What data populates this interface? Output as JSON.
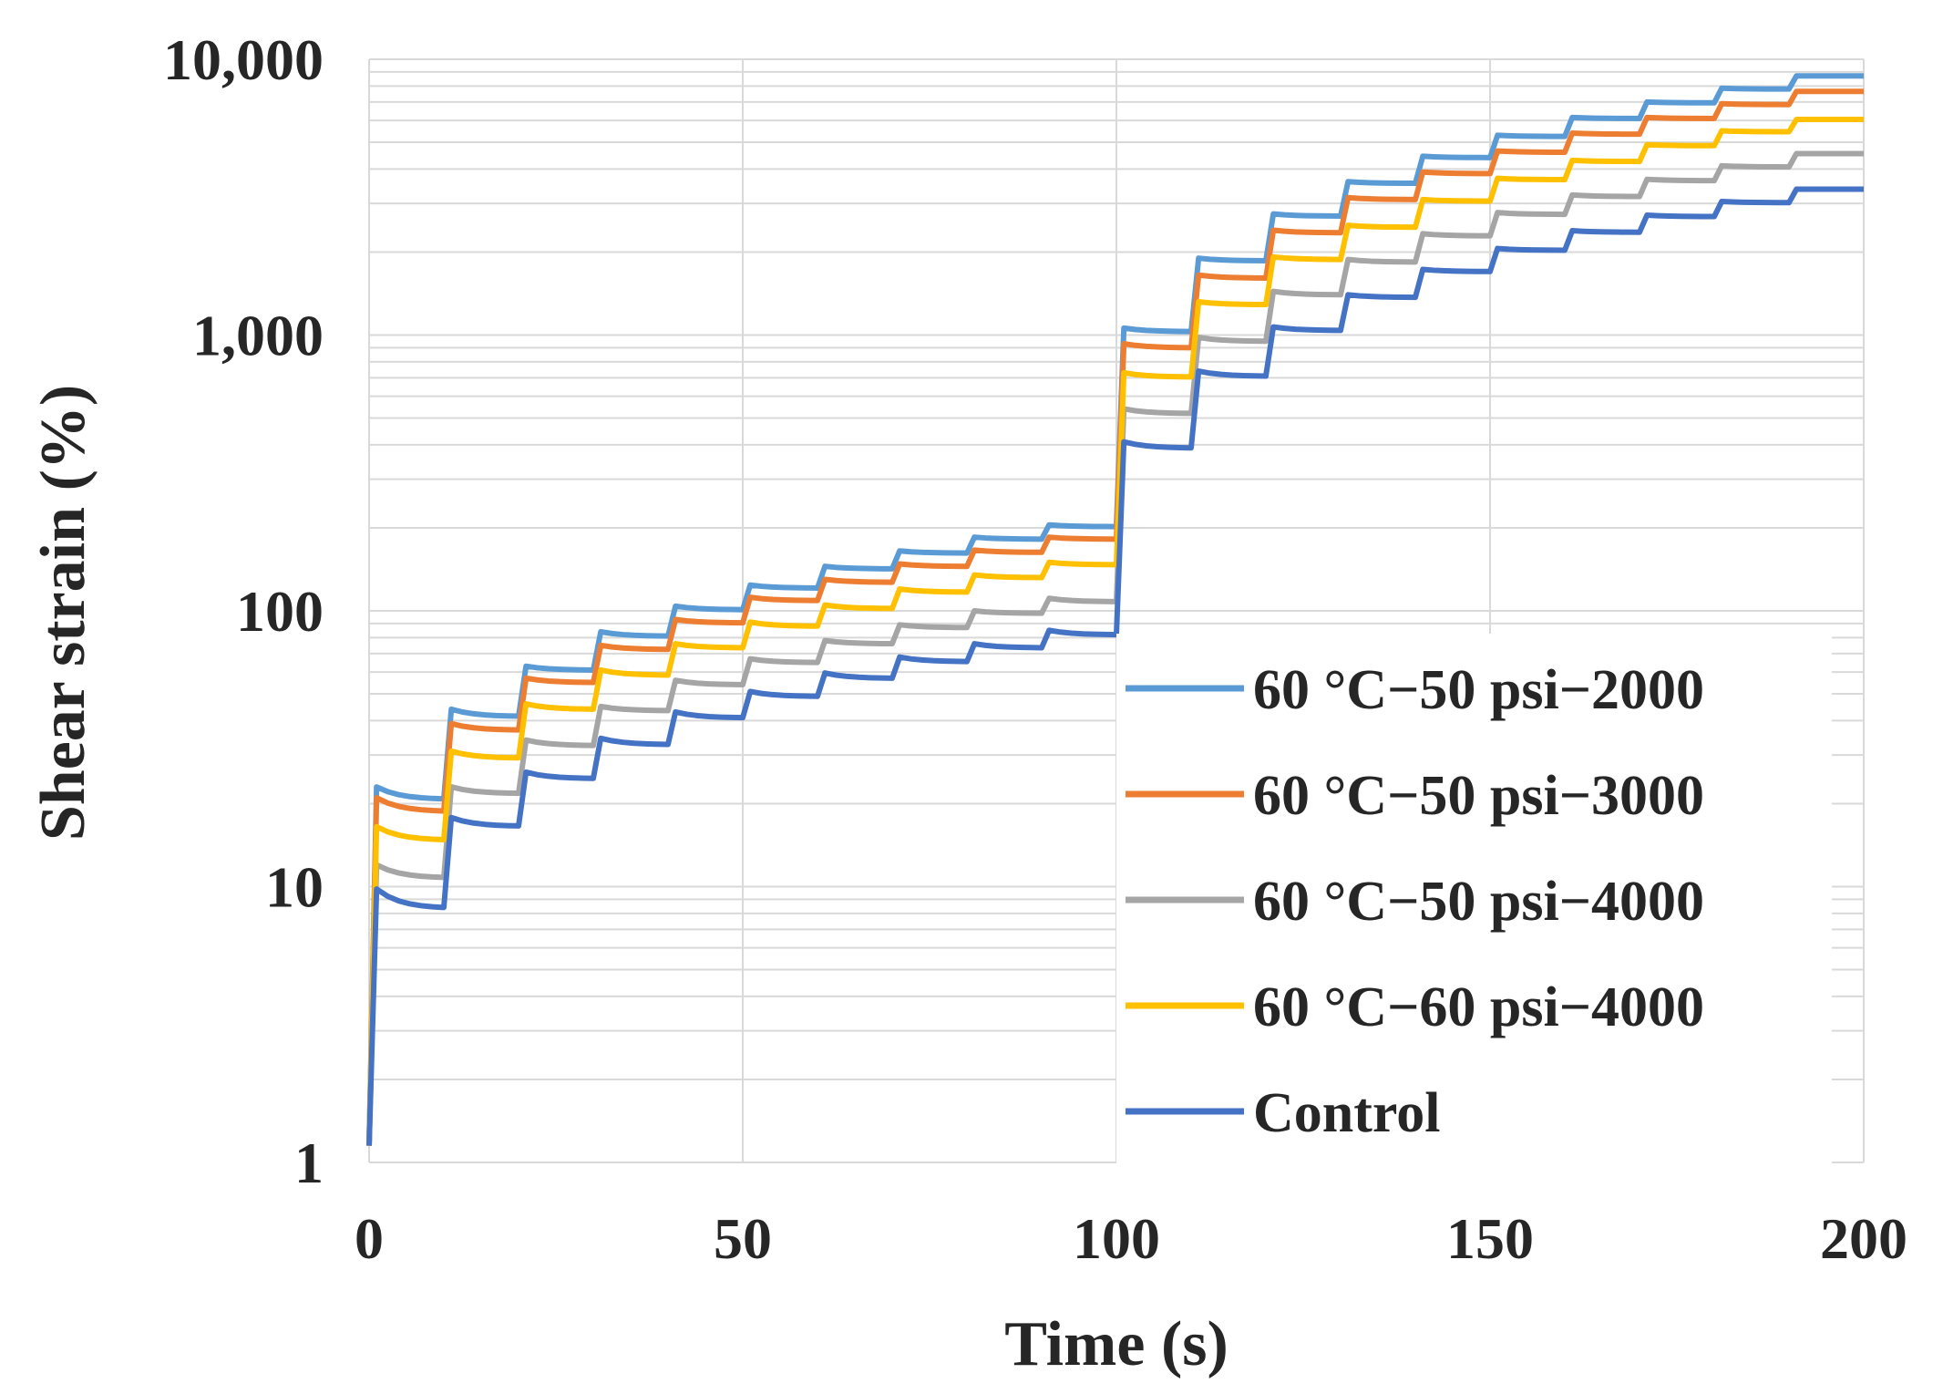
{
  "chart_data": {
    "type": "line",
    "title": "",
    "xlabel": "Time (s)",
    "ylabel": "Shear strain (%)",
    "x_range": [
      0,
      200
    ],
    "y_range": [
      1,
      10000
    ],
    "y_scale": "log",
    "x_ticks": [
      "0",
      "50",
      "100",
      "150",
      "200"
    ],
    "y_ticks": [
      "1",
      "10",
      "100",
      "1,000",
      "10,000"
    ],
    "grid": true,
    "legend_position": "lower-right",
    "series": [
      {
        "name": "60 °C−50 psi−2000",
        "color": "#5b9bd5",
        "start": 1.15,
        "cycles": [
          {
            "peak": 23,
            "end": 20.8
          },
          {
            "peak": 44,
            "end": 41.5
          },
          {
            "peak": 63,
            "end": 61
          },
          {
            "peak": 84,
            "end": 81
          },
          {
            "peak": 104,
            "end": 101
          },
          {
            "peak": 124,
            "end": 121
          },
          {
            "peak": 145,
            "end": 142
          },
          {
            "peak": 165,
            "end": 162
          },
          {
            "peak": 185,
            "end": 182
          },
          {
            "peak": 205,
            "end": 202
          },
          {
            "peak": 1060,
            "end": 1030
          },
          {
            "peak": 1900,
            "end": 1860
          },
          {
            "peak": 2750,
            "end": 2700
          },
          {
            "peak": 3600,
            "end": 3550
          },
          {
            "peak": 4450,
            "end": 4400
          },
          {
            "peak": 5300,
            "end": 5250
          },
          {
            "peak": 6150,
            "end": 6100
          },
          {
            "peak": 7000,
            "end": 6950
          },
          {
            "peak": 7850,
            "end": 7800
          },
          {
            "peak": 8700,
            "end": 8700
          }
        ]
      },
      {
        "name": "60 °C−50 psi−3000",
        "color": "#ed7d31",
        "start": 1.15,
        "cycles": [
          {
            "peak": 21,
            "end": 18.8
          },
          {
            "peak": 39,
            "end": 37
          },
          {
            "peak": 57,
            "end": 55
          },
          {
            "peak": 75,
            "end": 72.5
          },
          {
            "peak": 93,
            "end": 90.5
          },
          {
            "peak": 112,
            "end": 109
          },
          {
            "peak": 130,
            "end": 127
          },
          {
            "peak": 148,
            "end": 145
          },
          {
            "peak": 166,
            "end": 163
          },
          {
            "peak": 185,
            "end": 182
          },
          {
            "peak": 930,
            "end": 900
          },
          {
            "peak": 1650,
            "end": 1610
          },
          {
            "peak": 2400,
            "end": 2350
          },
          {
            "peak": 3150,
            "end": 3100
          },
          {
            "peak": 3900,
            "end": 3850
          },
          {
            "peak": 4650,
            "end": 4600
          },
          {
            "peak": 5400,
            "end": 5350
          },
          {
            "peak": 6150,
            "end": 6100
          },
          {
            "peak": 6900,
            "end": 6850
          },
          {
            "peak": 7650,
            "end": 7650
          }
        ]
      },
      {
        "name": "60 °C−50 psi−4000",
        "color": "#a5a5a5",
        "start": 1.15,
        "cycles": [
          {
            "peak": 12,
            "end": 10.8
          },
          {
            "peak": 23,
            "end": 21.8
          },
          {
            "peak": 34,
            "end": 32.5
          },
          {
            "peak": 45,
            "end": 43.5
          },
          {
            "peak": 56,
            "end": 54
          },
          {
            "peak": 67,
            "end": 65
          },
          {
            "peak": 78,
            "end": 76
          },
          {
            "peak": 89,
            "end": 87
          },
          {
            "peak": 100,
            "end": 98
          },
          {
            "peak": 111,
            "end": 108
          },
          {
            "peak": 540,
            "end": 520
          },
          {
            "peak": 980,
            "end": 950
          },
          {
            "peak": 1440,
            "end": 1400
          },
          {
            "peak": 1880,
            "end": 1840
          },
          {
            "peak": 2330,
            "end": 2290
          },
          {
            "peak": 2780,
            "end": 2740
          },
          {
            "peak": 3220,
            "end": 3180
          },
          {
            "peak": 3670,
            "end": 3630
          },
          {
            "peak": 4110,
            "end": 4070
          },
          {
            "peak": 4550,
            "end": 4550
          }
        ]
      },
      {
        "name": "60 °C−60 psi−4000",
        "color": "#ffc000",
        "start": 1.15,
        "cycles": [
          {
            "peak": 16.5,
            "end": 14.8
          },
          {
            "peak": 31,
            "end": 29.3
          },
          {
            "peak": 46,
            "end": 44
          },
          {
            "peak": 61,
            "end": 58.5
          },
          {
            "peak": 76,
            "end": 73.5
          },
          {
            "peak": 91,
            "end": 88
          },
          {
            "peak": 105,
            "end": 102
          },
          {
            "peak": 120,
            "end": 117
          },
          {
            "peak": 135,
            "end": 132
          },
          {
            "peak": 150,
            "end": 147
          },
          {
            "peak": 730,
            "end": 705
          },
          {
            "peak": 1320,
            "end": 1290
          },
          {
            "peak": 1920,
            "end": 1880
          },
          {
            "peak": 2500,
            "end": 2460
          },
          {
            "peak": 3100,
            "end": 3060
          },
          {
            "peak": 3700,
            "end": 3660
          },
          {
            "peak": 4300,
            "end": 4260
          },
          {
            "peak": 4900,
            "end": 4860
          },
          {
            "peak": 5500,
            "end": 5460
          },
          {
            "peak": 6050,
            "end": 6050
          }
        ]
      },
      {
        "name": "Control",
        "color": "#4472c4",
        "start": 1.15,
        "cycles": [
          {
            "peak": 9.8,
            "end": 8.4
          },
          {
            "peak": 17.8,
            "end": 16.6
          },
          {
            "peak": 26,
            "end": 24.7
          },
          {
            "peak": 34.5,
            "end": 32.8
          },
          {
            "peak": 43,
            "end": 41
          },
          {
            "peak": 51,
            "end": 49
          },
          {
            "peak": 59.5,
            "end": 57
          },
          {
            "peak": 68,
            "end": 65.5
          },
          {
            "peak": 76,
            "end": 73.5
          },
          {
            "peak": 85,
            "end": 82
          },
          {
            "peak": 410,
            "end": 390
          },
          {
            "peak": 740,
            "end": 710
          },
          {
            "peak": 1070,
            "end": 1040
          },
          {
            "peak": 1400,
            "end": 1370
          },
          {
            "peak": 1730,
            "end": 1700
          },
          {
            "peak": 2060,
            "end": 2030
          },
          {
            "peak": 2390,
            "end": 2360
          },
          {
            "peak": 2720,
            "end": 2690
          },
          {
            "peak": 3050,
            "end": 3020
          },
          {
            "peak": 3380,
            "end": 3380
          }
        ]
      }
    ]
  }
}
